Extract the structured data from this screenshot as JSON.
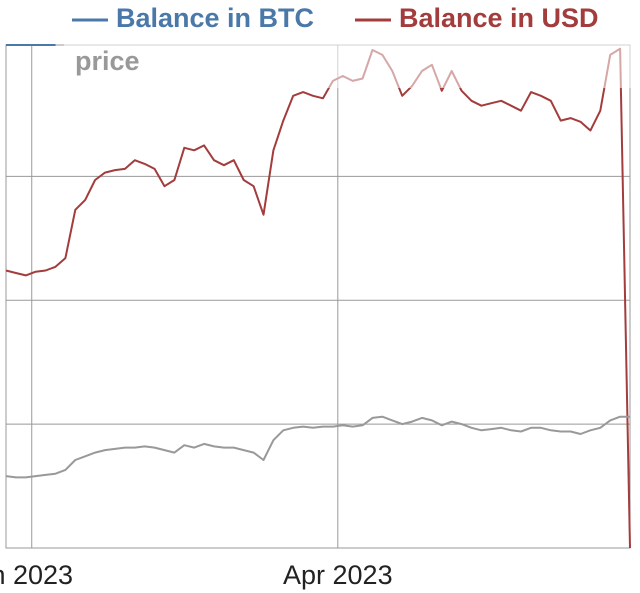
{
  "chart_data": {
    "type": "line",
    "legend": "top",
    "grid": true,
    "xlim": [
      0,
      63
    ],
    "xticks": [
      {
        "value": 2.6,
        "label": "n 2023"
      },
      {
        "value": 33.5,
        "label": "Apr 2023"
      }
    ],
    "ylim": [
      0,
      4.06
    ],
    "yticks": [
      1,
      2,
      3
    ],
    "series": [
      {
        "name": "Balance in BTC",
        "color": "#4a78a8",
        "values": [
          4.06,
          4.06,
          4.06,
          4.06,
          4.06,
          4.06,
          null,
          null,
          null,
          null,
          null,
          null,
          null,
          null,
          null,
          null,
          null,
          null,
          null,
          null,
          null,
          null,
          null,
          null,
          null,
          null,
          null,
          null,
          null,
          null,
          null,
          null,
          null,
          null,
          null,
          null,
          null,
          null,
          null,
          null,
          null,
          null,
          null,
          null,
          null,
          null,
          null,
          null,
          null,
          null,
          null,
          null,
          null,
          null,
          null,
          null,
          null,
          null,
          null,
          null,
          null,
          null,
          null,
          null
        ]
      },
      {
        "name": "Balance in USD",
        "color": "#a33c3c",
        "values": [
          2.24,
          2.22,
          2.2,
          2.23,
          2.24,
          2.27,
          2.34,
          2.73,
          2.81,
          2.97,
          3.03,
          3.05,
          3.06,
          3.13,
          3.1,
          3.06,
          2.92,
          2.97,
          3.23,
          3.21,
          3.25,
          3.13,
          3.09,
          3.13,
          2.97,
          2.92,
          2.69,
          3.21,
          3.45,
          3.65,
          3.68,
          3.65,
          3.63,
          3.77,
          3.81,
          3.77,
          3.79,
          4.02,
          3.98,
          3.85,
          3.65,
          3.73,
          3.85,
          3.9,
          3.69,
          3.85,
          3.69,
          3.61,
          3.57,
          3.59,
          3.61,
          3.57,
          3.53,
          3.68,
          3.65,
          3.61,
          3.45,
          3.47,
          3.44,
          3.37,
          3.53,
          3.98,
          4.03,
          0
        ]
      },
      {
        "name": "price",
        "color": "#999999",
        "values": [
          0.58,
          0.57,
          0.57,
          0.58,
          0.59,
          0.6,
          0.63,
          0.71,
          0.74,
          0.77,
          0.79,
          0.8,
          0.81,
          0.81,
          0.82,
          0.81,
          0.79,
          0.77,
          0.83,
          0.81,
          0.84,
          0.82,
          0.81,
          0.81,
          0.79,
          0.77,
          0.71,
          0.87,
          0.95,
          0.97,
          0.98,
          0.97,
          0.98,
          0.98,
          0.99,
          0.98,
          0.99,
          1.05,
          1.06,
          1.03,
          1.0,
          1.02,
          1.05,
          1.03,
          0.99,
          1.02,
          1.0,
          0.97,
          0.95,
          0.96,
          0.97,
          0.95,
          0.94,
          0.97,
          0.97,
          0.95,
          0.94,
          0.94,
          0.92,
          0.95,
          0.97,
          1.03,
          1.06,
          1.06
        ]
      }
    ]
  }
}
